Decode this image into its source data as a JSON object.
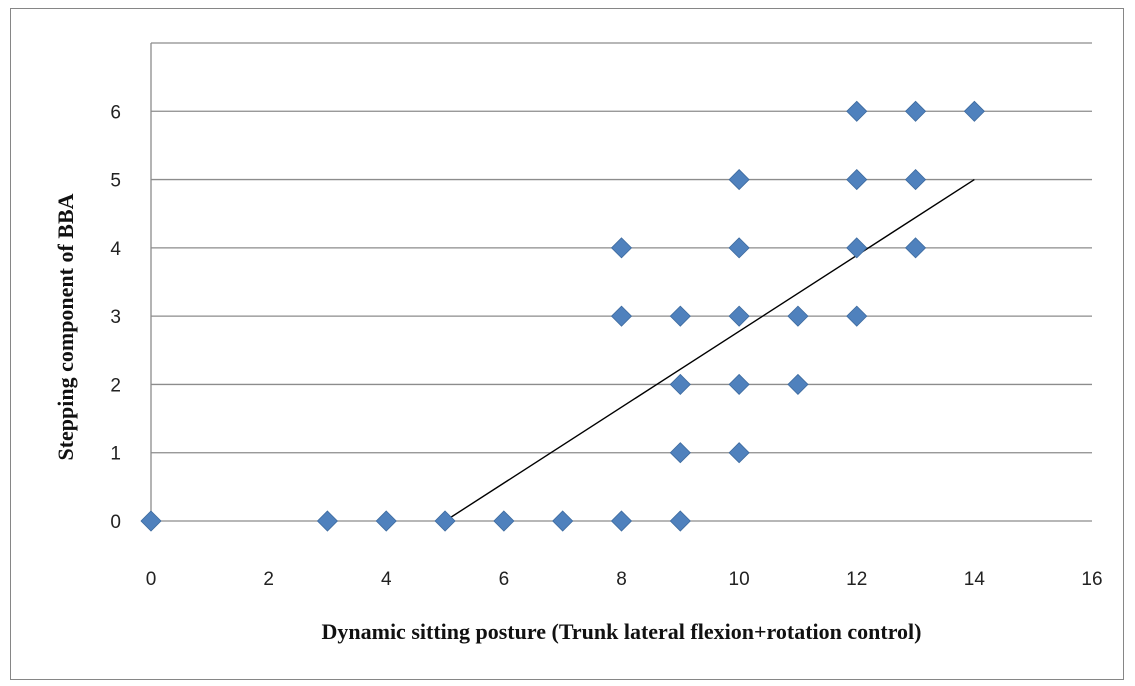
{
  "chart_data": {
    "type": "scatter",
    "title": "",
    "xlabel": "Dynamic sitting posture  (Trunk lateral flexion+rotation control)",
    "ylabel": "Stepping component of BBA",
    "xlim": [
      0,
      16
    ],
    "ylim": [
      0,
      7
    ],
    "x_ticks": [
      "0",
      "2",
      "4",
      "6",
      "8",
      "10",
      "12",
      "14",
      "16"
    ],
    "y_ticks": [
      "0",
      "1",
      "2",
      "3",
      "4",
      "5",
      "6"
    ],
    "grid": "horizontal",
    "legend": "none",
    "marker_color": "#4f81bd",
    "trendline_color": "#000000",
    "points": [
      {
        "x": 0,
        "y": 0
      },
      {
        "x": 3,
        "y": 0
      },
      {
        "x": 4,
        "y": 0
      },
      {
        "x": 5,
        "y": 0
      },
      {
        "x": 6,
        "y": 0
      },
      {
        "x": 7,
        "y": 0
      },
      {
        "x": 8,
        "y": 0
      },
      {
        "x": 9,
        "y": 0
      },
      {
        "x": 9,
        "y": 1
      },
      {
        "x": 10,
        "y": 1
      },
      {
        "x": 9,
        "y": 2
      },
      {
        "x": 10,
        "y": 2
      },
      {
        "x": 11,
        "y": 2
      },
      {
        "x": 8,
        "y": 3
      },
      {
        "x": 9,
        "y": 3
      },
      {
        "x": 10,
        "y": 3
      },
      {
        "x": 11,
        "y": 3
      },
      {
        "x": 12,
        "y": 3
      },
      {
        "x": 8,
        "y": 4
      },
      {
        "x": 10,
        "y": 4
      },
      {
        "x": 12,
        "y": 4
      },
      {
        "x": 13,
        "y": 4
      },
      {
        "x": 10,
        "y": 5
      },
      {
        "x": 12,
        "y": 5
      },
      {
        "x": 13,
        "y": 5
      },
      {
        "x": 12,
        "y": 6
      },
      {
        "x": 13,
        "y": 6
      },
      {
        "x": 14,
        "y": 6
      }
    ],
    "trendline": {
      "x": [
        5,
        14
      ],
      "y": [
        0,
        5
      ]
    }
  }
}
